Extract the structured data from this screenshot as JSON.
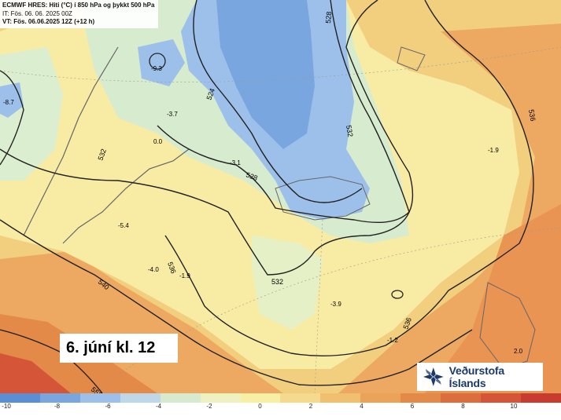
{
  "header": {
    "line1": "ECMWF HRES: Hiti (°C) í 850 hPa og þykkt 500 hPa",
    "line2": "IT: Fös. 06. 06. 2025 00Z",
    "line3": "VT: Fös. 06.06.2025 12Z (+12 h)"
  },
  "day_label": "6. júní kl. 12",
  "logo": {
    "text": "Veðurstofa Íslands",
    "icon": "snowflake-logo-icon",
    "color": "#1b3a6b"
  },
  "contours": {
    "l524": "524",
    "l528a": "528",
    "l528b": "528",
    "l532a": "532",
    "l532b": "532",
    "l532c": "532",
    "l536a": "536",
    "l536b": "536",
    "l536c": "536",
    "l540": "540",
    "l552": "552"
  },
  "temp_labels": {
    "t1": "-9.3",
    "t2": "-8.7",
    "t3": "-3.7",
    "t4": "0.0",
    "t5": "-3.1",
    "t6": "-5.4",
    "t7": "-4.0",
    "t8": "-1.9",
    "t9": "-3.9",
    "t10": "-1.2",
    "t11": "-1.9",
    "t12": "2.0"
  },
  "colorbar": {
    "ticks": [
      "-10",
      "-8",
      "-6",
      "-4",
      "-2",
      "0",
      "2",
      "4",
      "6",
      "8",
      "10"
    ],
    "colors": [
      "#5a8fd6",
      "#7aa6e0",
      "#9dc0ea",
      "#bed8ea",
      "#d6ead0",
      "#eef2c0",
      "#f7efa4",
      "#f5d98c",
      "#f0c070",
      "#eba35a",
      "#e48a48",
      "#dc6e3e",
      "#d45538",
      "#c83c30"
    ]
  }
}
